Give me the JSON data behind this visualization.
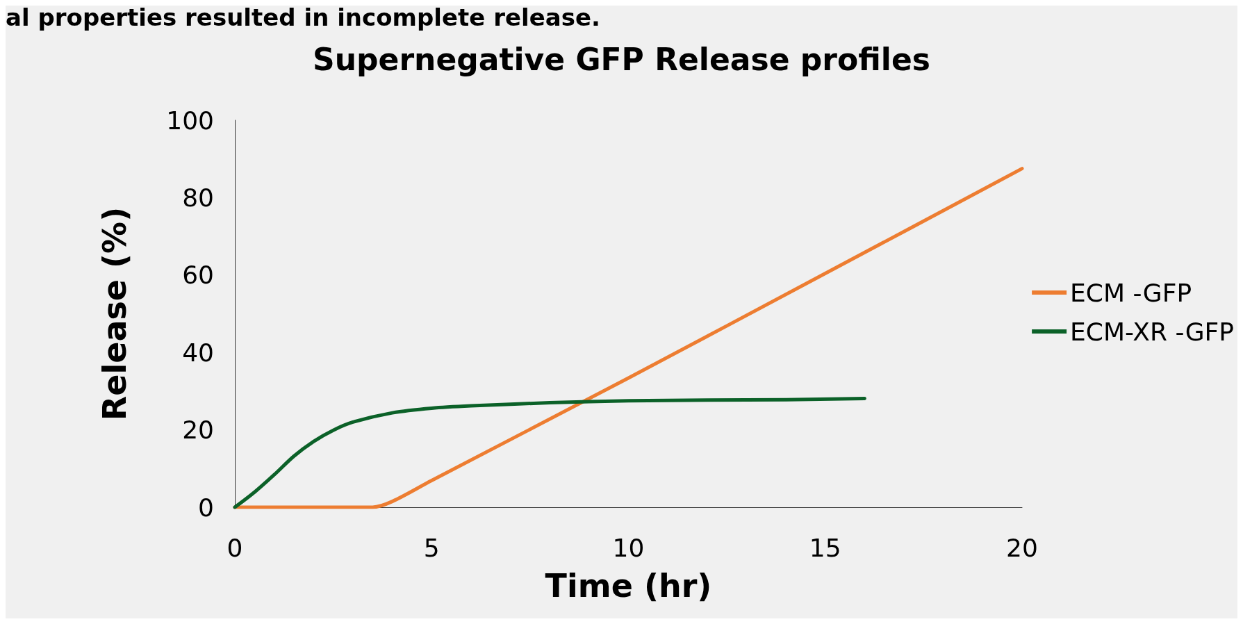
{
  "chart_data": {
    "type": "line",
    "title": "Supernegative GFP Release profiles",
    "annotations": [
      "al properties resulted in incomplete release."
    ],
    "xlabel": "Time (hr)",
    "ylabel": "Release (%)",
    "xlim": [
      0,
      20
    ],
    "xticks": [
      0,
      5,
      10,
      15,
      20
    ],
    "ylim": [
      0,
      100
    ],
    "yticks": [
      0,
      20,
      40,
      60,
      80,
      100
    ],
    "grid": false,
    "legend": "right",
    "marker": "none",
    "line_style": "solid",
    "series": [
      {
        "name": "ECM -GFP",
        "color": "#ed7d31",
        "x": [
          0,
          1,
          2,
          3,
          3.5,
          4,
          5,
          10,
          15,
          20
        ],
        "values": [
          0,
          0,
          0,
          0,
          0,
          1.5,
          6.9,
          33.4,
          60.4,
          87.5
        ]
      },
      {
        "name": "ECM-XR -GFP",
        "color": "#0b6128",
        "x": [
          0,
          0.5,
          1,
          1.5,
          2,
          2.5,
          3,
          4,
          5,
          6,
          8,
          10,
          12,
          14,
          16
        ],
        "values": [
          0,
          3.9,
          8.4,
          13.2,
          17,
          19.9,
          22,
          24.4,
          25.6,
          26.2,
          27,
          27.5,
          27.7,
          27.8,
          28.1
        ]
      }
    ]
  }
}
